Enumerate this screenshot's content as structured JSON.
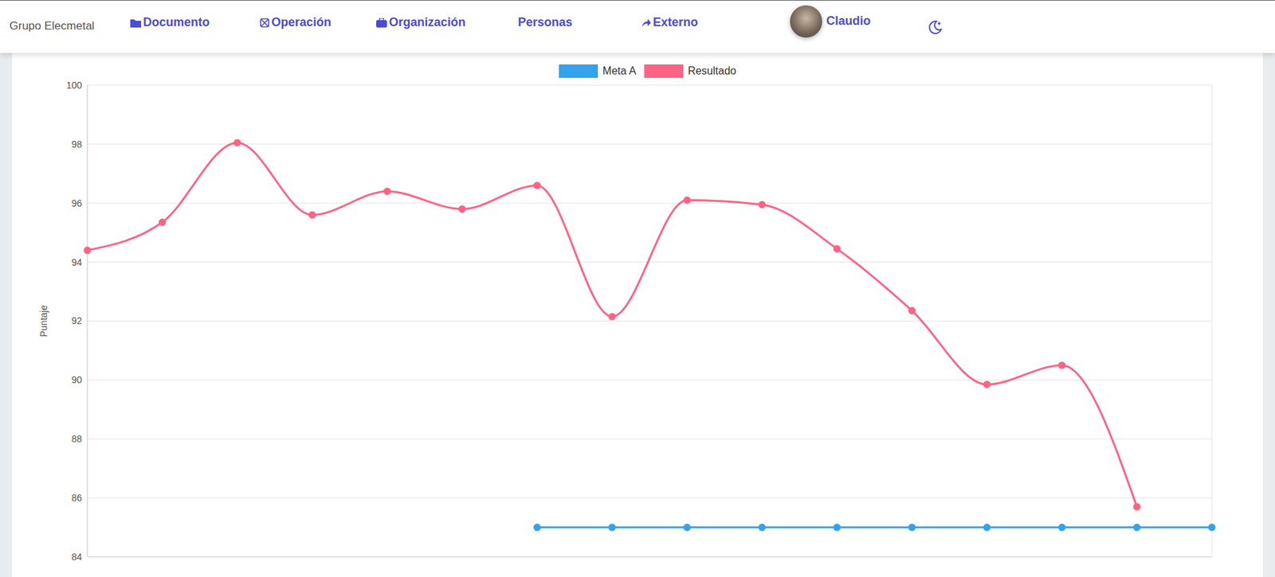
{
  "nav": {
    "brand": "Grupo Elecmetal",
    "links": [
      "Documento",
      "Operación",
      "Organización",
      "Personas",
      "Externo"
    ],
    "user": "Claudio"
  },
  "chart_data": {
    "type": "line",
    "y_label": "Puntaje",
    "categories": [
      null,
      null,
      null,
      null,
      null,
      null,
      null,
      null,
      null,
      null,
      null,
      null,
      null,
      null,
      null,
      null
    ],
    "series": [
      {
        "name": "Meta A",
        "color": "#36a2eb",
        "values": [
          null,
          null,
          null,
          null,
          null,
          null,
          85,
          85,
          85,
          85,
          85,
          85,
          85,
          85,
          85,
          85
        ]
      },
      {
        "name": "Resultado",
        "color": "#ff6384",
        "values": [
          94.4,
          95.35,
          98.05,
          95.6,
          96.4,
          95.8,
          96.6,
          92.15,
          96.1,
          95.95,
          94.45,
          92.35,
          89.85,
          90.5,
          85.7,
          null
        ]
      }
    ],
    "ylim": [
      84,
      100
    ],
    "yticks": [
      84,
      86,
      88,
      90,
      92,
      94,
      96,
      98,
      100
    ],
    "grid": true,
    "legend": "top",
    "tick_labels": "y",
    "marker": "circle",
    "line_style": "solid"
  }
}
